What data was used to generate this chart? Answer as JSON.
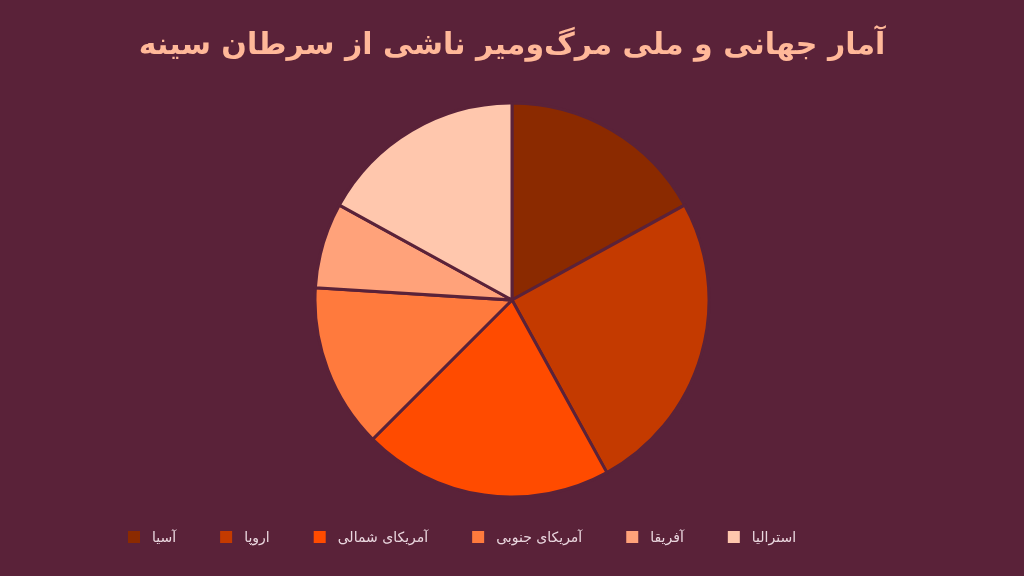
{
  "chart_data": {
    "type": "pie",
    "title": "آمار جهانی و ملی مرگ‌ومیر ناشی از سرطان سینه",
    "categories": [
      "آسیا",
      "اروپا",
      "آمریکای شمالی",
      "آمریکای جنوبی",
      "آفریقا",
      "استرالیا"
    ],
    "values": [
      17,
      25,
      20.5,
      13.5,
      7,
      17
    ],
    "colors": [
      "#8b2a00",
      "#c43a00",
      "#ff4b00",
      "#ff7a3d",
      "#ffa27a",
      "#ffc7ad"
    ],
    "legend": "bottom"
  }
}
